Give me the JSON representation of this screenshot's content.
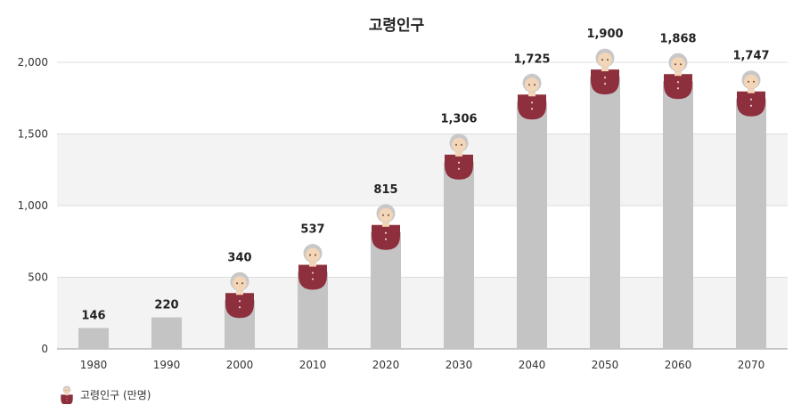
{
  "chart_data": {
    "type": "bar",
    "title": "고령인구",
    "categories": [
      "1980",
      "1990",
      "2000",
      "2010",
      "2020",
      "2030",
      "2040",
      "2050",
      "2060",
      "2070"
    ],
    "series": [
      {
        "name": "고령인구 (만명)",
        "values": [
          146,
          220,
          340,
          537,
          815,
          1306,
          1725,
          1900,
          1868,
          1747
        ]
      }
    ],
    "data_labels": [
      "146",
      "220",
      "340",
      "537",
      "815",
      "1,306",
      "1,725",
      "1,900",
      "1,868",
      "1,747"
    ],
    "yticks": [
      0,
      500,
      1000,
      1500,
      2000
    ],
    "ytick_labels": [
      "0",
      "500",
      "1,000",
      "1,500",
      "2,000"
    ],
    "ylim": [
      0,
      2000
    ],
    "grid": true,
    "legend_position": "bottom-left",
    "legend_icon": "elderly-person-icon",
    "icon_from_category": "2000",
    "colors": {
      "bar": "#c4c4c4",
      "band": "#f3f3f3",
      "gridline": "#dddddd",
      "axis": "#999999",
      "icon_body": "#8d2f3c",
      "icon_face": "#f3d5b8",
      "icon_hair": "#c8c8c8"
    }
  }
}
